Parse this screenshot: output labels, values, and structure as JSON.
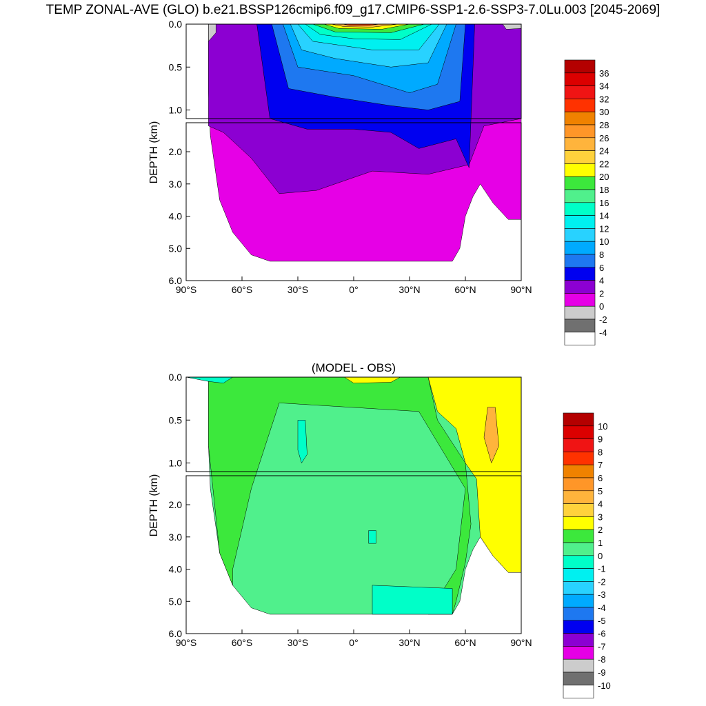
{
  "page": {
    "title": "TEMP ZONAL-AVE (GLO) b.e21.BSSP126cmip6.f09_g17.CMIP6-SSP1-2.6-SSP3-7.0Lu.003 [2045-2069]"
  },
  "chart_data": [
    {
      "type": "heatmap",
      "title": "",
      "variable": "TEMP",
      "xlabel": "",
      "ylabel": "DEPTH (km)",
      "x_ticks": [
        "90°S",
        "60°S",
        "30°S",
        "0°",
        "30°N",
        "60°N",
        "90°N"
      ],
      "y_ticks_upper": [
        "0.0",
        "0.5",
        "1.0"
      ],
      "y_ticks_lower": [
        "2.0",
        "3.0",
        "4.0",
        "5.0",
        "6.0"
      ],
      "xlim": [
        -90,
        90
      ],
      "ylim_km": [
        0,
        6
      ],
      "colorbar": {
        "labels": [
          "36",
          "34",
          "32",
          "30",
          "28",
          "26",
          "24",
          "22",
          "20",
          "18",
          "16",
          "14",
          "12",
          "10",
          "8",
          "6",
          "4",
          "2",
          "0",
          "-2",
          "-4"
        ],
        "colors": [
          "#b40000",
          "#dc0000",
          "#f01414",
          "#ff3200",
          "#f08200",
          "#ff9628",
          "#ffb43c",
          "#ffd23c",
          "#ffff00",
          "#3ce83c",
          "#50f08c",
          "#00ffc8",
          "#00f0f0",
          "#28d2ff",
          "#00aaff",
          "#1e78f0",
          "#0000f0",
          "#8c00d2",
          "#e600e6",
          "#cccccc",
          "#707070",
          "#ffffff"
        ]
      }
    },
    {
      "type": "heatmap",
      "title": "(MODEL - OBS)",
      "variable": "TEMP difference",
      "xlabel": "",
      "ylabel": "DEPTH (km)",
      "x_ticks": [
        "90°S",
        "60°S",
        "30°S",
        "0°",
        "30°N",
        "60°N",
        "90°N"
      ],
      "y_ticks_upper": [
        "0.0",
        "0.5",
        "1.0"
      ],
      "y_ticks_lower": [
        "2.0",
        "3.0",
        "4.0",
        "5.0",
        "6.0"
      ],
      "xlim": [
        -90,
        90
      ],
      "ylim_km": [
        0,
        6
      ],
      "colorbar": {
        "labels": [
          "10",
          "9",
          "8",
          "7",
          "6",
          "5",
          "4",
          "3",
          "2",
          "1",
          "0",
          "-1",
          "-2",
          "-3",
          "-4",
          "-5",
          "-6",
          "-7",
          "-8",
          "-9",
          "-10"
        ],
        "colors": [
          "#b40000",
          "#dc0000",
          "#f01414",
          "#ff3200",
          "#f08200",
          "#ff9628",
          "#ffb43c",
          "#ffd23c",
          "#ffff00",
          "#3ce83c",
          "#50f08c",
          "#00ffc8",
          "#00f0f0",
          "#28d2ff",
          "#00aaff",
          "#1e78f0",
          "#0000f0",
          "#8c00d2",
          "#e600e6",
          "#cccccc",
          "#707070",
          "#ffffff"
        ]
      }
    }
  ]
}
